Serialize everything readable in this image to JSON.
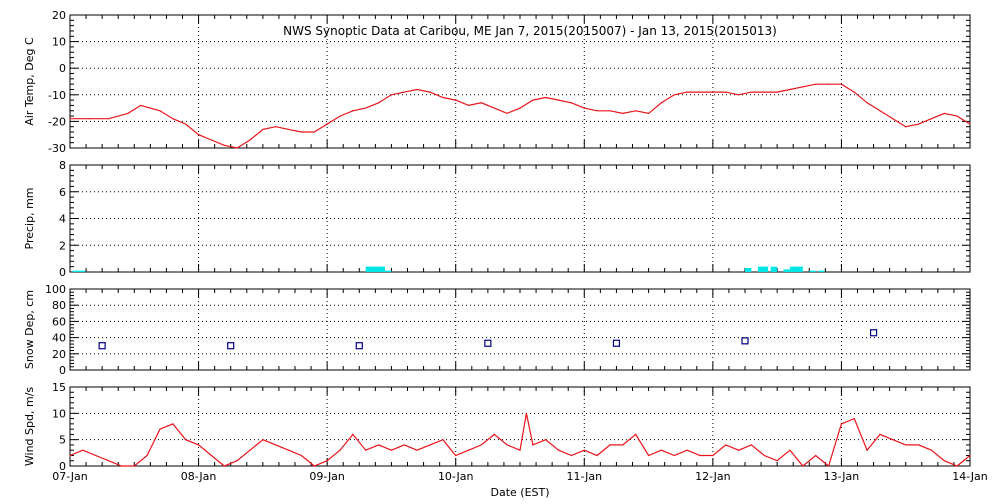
{
  "title": "NWS Synoptic Data at Caribou, ME   Jan  7, 2015(2015007) - Jan 13, 2015(2015013)",
  "xlabel": "Date (EST)",
  "x_ticks": [
    "07-Jan",
    "08-Jan",
    "09-Jan",
    "10-Jan",
    "11-Jan",
    "12-Jan",
    "13-Jan",
    "14-Jan"
  ],
  "colors": {
    "temp": "#e8141a",
    "precip": "#00e5e5",
    "snow": "#000080",
    "wind": "#e8141a",
    "axis": "#000000",
    "grid": "#000000"
  },
  "chart_data": [
    {
      "type": "line",
      "id": "temp",
      "ylabel": "Air Temp, Deg C",
      "ylim": [
        -30,
        20
      ],
      "yticks": [
        "20",
        "10",
        "0",
        "-10",
        "-20",
        "-30"
      ],
      "yticks_values": [
        20,
        10,
        0,
        -10,
        -20,
        -30
      ],
      "xlim_days": [
        0,
        7
      ],
      "x": [
        0,
        0.15,
        0.3,
        0.45,
        0.55,
        0.7,
        0.8,
        0.9,
        1.0,
        1.1,
        1.2,
        1.3,
        1.4,
        1.5,
        1.6,
        1.7,
        1.8,
        1.9,
        2.0,
        2.1,
        2.2,
        2.3,
        2.4,
        2.5,
        2.6,
        2.7,
        2.8,
        2.9,
        3.0,
        3.1,
        3.2,
        3.3,
        3.4,
        3.5,
        3.6,
        3.7,
        3.8,
        3.9,
        4.0,
        4.1,
        4.2,
        4.3,
        4.4,
        4.5,
        4.6,
        4.7,
        4.8,
        4.9,
        5.0,
        5.1,
        5.2,
        5.3,
        5.4,
        5.5,
        5.6,
        5.7,
        5.8,
        5.9,
        6.0,
        6.1,
        6.2,
        6.3,
        6.4,
        6.5,
        6.6,
        6.7,
        6.8,
        6.9,
        7.0
      ],
      "values": [
        -19,
        -19,
        -19,
        -17,
        -14,
        -16,
        -19,
        -21,
        -25,
        -27,
        -29,
        -30,
        -27,
        -23,
        -22,
        -23,
        -24,
        -24,
        -21,
        -18,
        -16,
        -15,
        -13,
        -10,
        -9,
        -8,
        -9,
        -11,
        -12,
        -14,
        -13,
        -15,
        -17,
        -15,
        -12,
        -11,
        -12,
        -13,
        -15,
        -16,
        -16,
        -17,
        -16,
        -17,
        -13,
        -10,
        -9,
        -9,
        -9,
        -9,
        -10,
        -9,
        -9,
        -9,
        -8,
        -7,
        -6,
        -6,
        -6,
        -9,
        -13,
        -16,
        -19,
        -22,
        -21,
        -19,
        -17,
        -18,
        -21
      ]
    },
    {
      "type": "bar",
      "id": "precip",
      "ylabel": "Precip, mm",
      "ylim": [
        0,
        8
      ],
      "yticks": [
        "8",
        "6",
        "4",
        "2",
        "0"
      ],
      "yticks_values": [
        8,
        6,
        4,
        2,
        0
      ],
      "bars": [
        {
          "x": 0.02,
          "width": 0.1,
          "value": 0.1
        },
        {
          "x": 2.3,
          "width": 0.15,
          "value": 0.4
        },
        {
          "x": 2.45,
          "width": 0.05,
          "value": 0.1
        },
        {
          "x": 5.25,
          "width": 0.05,
          "value": 0.3
        },
        {
          "x": 5.35,
          "width": 0.08,
          "value": 0.4
        },
        {
          "x": 5.45,
          "width": 0.05,
          "value": 0.4
        },
        {
          "x": 5.55,
          "width": 0.05,
          "value": 0.2
        },
        {
          "x": 5.6,
          "width": 0.1,
          "value": 0.4
        },
        {
          "x": 5.75,
          "width": 0.05,
          "value": 0.1
        },
        {
          "x": 5.82,
          "width": 0.05,
          "value": 0.1
        }
      ]
    },
    {
      "type": "scatter",
      "id": "snow",
      "ylabel": "Snow Dep, cm",
      "ylim": [
        0,
        100
      ],
      "yticks": [
        "100",
        "80",
        "60",
        "40",
        "20",
        "0"
      ],
      "yticks_values": [
        100,
        80,
        60,
        40,
        20,
        0
      ],
      "x": [
        0.25,
        1.25,
        2.25,
        3.25,
        4.25,
        5.25,
        6.25
      ],
      "values": [
        30,
        30,
        30,
        33,
        33,
        36,
        46
      ]
    },
    {
      "type": "line",
      "id": "wind",
      "ylabel": "Wind Spd, m/s",
      "ylim": [
        0,
        15
      ],
      "yticks": [
        "15",
        "10",
        "5",
        "0"
      ],
      "yticks_values": [
        15,
        10,
        5,
        0
      ],
      "x": [
        0,
        0.1,
        0.2,
        0.3,
        0.4,
        0.5,
        0.6,
        0.7,
        0.8,
        0.9,
        1.0,
        1.1,
        1.2,
        1.3,
        1.4,
        1.5,
        1.6,
        1.7,
        1.8,
        1.9,
        2.0,
        2.1,
        2.2,
        2.3,
        2.4,
        2.5,
        2.6,
        2.7,
        2.8,
        2.9,
        3.0,
        3.1,
        3.2,
        3.3,
        3.4,
        3.5,
        3.55,
        3.6,
        3.7,
        3.8,
        3.9,
        4.0,
        4.1,
        4.2,
        4.3,
        4.4,
        4.5,
        4.6,
        4.7,
        4.8,
        4.9,
        5.0,
        5.1,
        5.2,
        5.3,
        5.4,
        5.5,
        5.6,
        5.7,
        5.8,
        5.9,
        6.0,
        6.1,
        6.2,
        6.3,
        6.4,
        6.5,
        6.6,
        6.7,
        6.8,
        6.9,
        7.0
      ],
      "values": [
        2,
        3,
        2,
        1,
        0,
        0,
        2,
        7,
        8,
        5,
        4,
        2,
        0,
        1,
        3,
        5,
        4,
        3,
        2,
        0,
        1,
        3,
        6,
        3,
        4,
        3,
        4,
        3,
        4,
        5,
        2,
        3,
        4,
        6,
        4,
        3,
        10,
        4,
        5,
        3,
        2,
        3,
        2,
        4,
        4,
        6,
        2,
        3,
        2,
        3,
        2,
        2,
        4,
        3,
        4,
        2,
        1,
        3,
        0,
        2,
        0,
        8,
        9,
        3,
        6,
        5,
        4,
        4,
        3,
        1,
        0,
        2
      ]
    }
  ]
}
